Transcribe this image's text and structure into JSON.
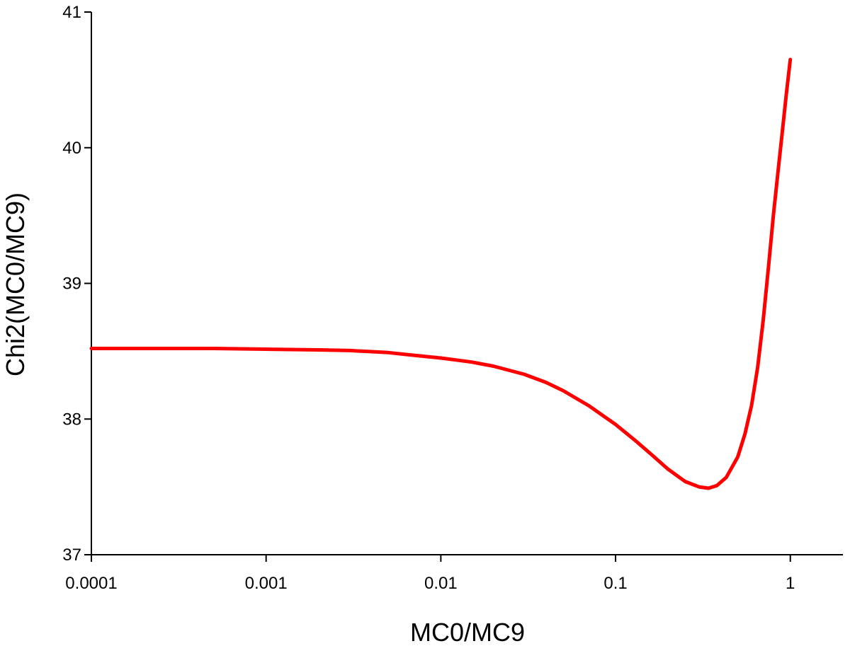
{
  "chart_data": {
    "type": "line",
    "title": "",
    "xlabel": "MC0/MC9",
    "ylabel": "Chi2(MC0/MC9)",
    "x_scale": "log",
    "xlim": [
      0.0001,
      2
    ],
    "ylim": [
      37,
      41
    ],
    "x_ticks": [
      {
        "value": 0.0001,
        "label": "0.0001"
      },
      {
        "value": 0.001,
        "label": "0.001"
      },
      {
        "value": 0.01,
        "label": "0.01"
      },
      {
        "value": 0.1,
        "label": "0.1"
      },
      {
        "value": 1,
        "label": "1"
      }
    ],
    "y_ticks": [
      {
        "value": 37,
        "label": "37"
      },
      {
        "value": 38,
        "label": "38"
      },
      {
        "value": 39,
        "label": "39"
      },
      {
        "value": 40,
        "label": "40"
      },
      {
        "value": 41,
        "label": "41"
      }
    ],
    "grid": false,
    "series": [
      {
        "color": "#ff0000",
        "x": [
          0.0001,
          0.0002,
          0.0005,
          0.001,
          0.002,
          0.003,
          0.005,
          0.007,
          0.01,
          0.015,
          0.02,
          0.03,
          0.04,
          0.05,
          0.07,
          0.1,
          0.13,
          0.16,
          0.2,
          0.25,
          0.3,
          0.34,
          0.38,
          0.43,
          0.5,
          0.55,
          0.6,
          0.65,
          0.7,
          0.75,
          0.8,
          0.85,
          0.9,
          0.95,
          1.0
        ],
        "y": [
          38.52,
          38.52,
          38.52,
          38.515,
          38.51,
          38.505,
          38.49,
          38.47,
          38.45,
          38.42,
          38.39,
          38.33,
          38.27,
          38.21,
          38.1,
          37.96,
          37.84,
          37.74,
          37.63,
          37.54,
          37.5,
          37.49,
          37.51,
          37.57,
          37.72,
          37.89,
          38.1,
          38.38,
          38.73,
          39.12,
          39.5,
          39.82,
          40.12,
          40.4,
          40.65
        ]
      }
    ]
  }
}
